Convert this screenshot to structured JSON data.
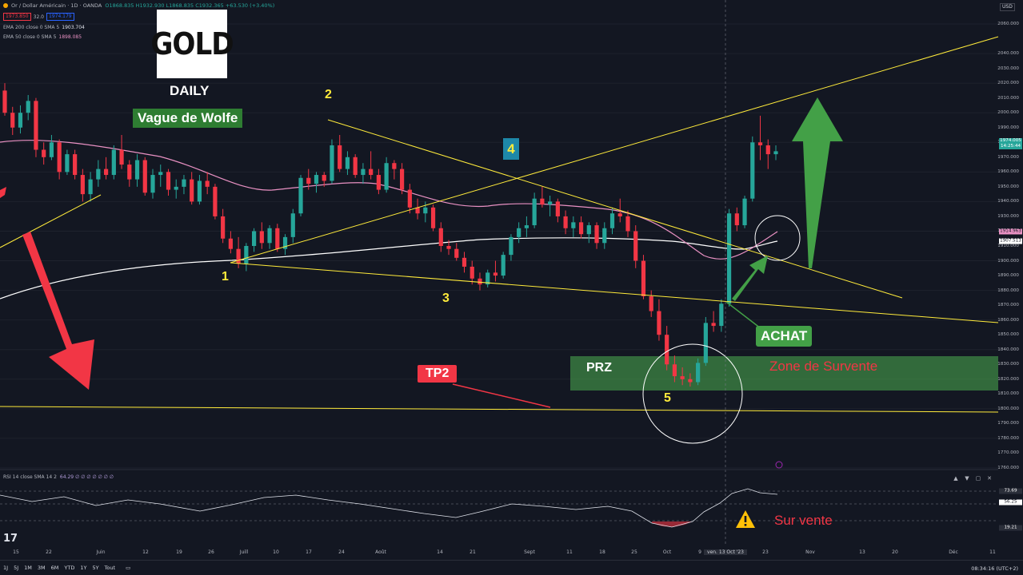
{
  "header": {
    "symbol": "Or / Dollar Américain · 1D · OANDA",
    "bid": "1973.850",
    "spread": "32.0",
    "ask": "1974.179",
    "ohlc": "O1868.835 H1932.930 L1868.835 C1932.365 +63.530 (+3.40%)"
  },
  "indicators": {
    "ema200_label": "EMA 200 close 0 SMA 5",
    "ema200_value": "1903.704",
    "ema50_label": "EMA 50 close 0 SMA 5",
    "ema50_value": "1898.085",
    "rsi_label": "RSI 14 close SMA 14 2",
    "rsi_value": "64.29 ∅ ∅ ∅ ∅ ∅ ∅ ∅"
  },
  "annotations": {
    "logo_text": "GOLD",
    "timeframe": "DAILY",
    "pattern": "Vague de Wolfe",
    "w1": "1",
    "w2": "2",
    "w3": "3",
    "w4": "4",
    "w5": "5",
    "prz": "PRZ",
    "zone": "Zone de Survente",
    "tp2": "TP2",
    "achat": "ACHAT",
    "survente": "Sur vente"
  },
  "price_axis": {
    "currency": "USD",
    "ticks": [
      "2060.000",
      "2040.000",
      "2030.000",
      "2020.000",
      "2010.000",
      "2000.000",
      "1990.000",
      "1980.000",
      "1970.000",
      "1960.000",
      "1950.000",
      "1940.000",
      "1930.000",
      "1920.000",
      "1910.000",
      "1900.000",
      "1890.000",
      "1880.000",
      "1870.000",
      "1860.000",
      "1850.000",
      "1840.000",
      "1830.000",
      "1820.000",
      "1810.000",
      "1800.000",
      "1790.000",
      "1780.000",
      "1770.000",
      "1760.000"
    ],
    "last_price": "1974.005",
    "countdown": "14:25:44",
    "ema50_tag": "1914.963",
    "ema200_tag": "1907.513",
    "rsi_ticks": [
      "73.69",
      "56.25",
      "19.21"
    ]
  },
  "time_axis": {
    "ticks": [
      "15",
      "22",
      "Juin",
      "12",
      "19",
      "26",
      "Juill",
      "10",
      "17",
      "24",
      "Août",
      "14",
      "21",
      "Sept",
      "11",
      "18",
      "25",
      "Oct",
      "9",
      "ven. 13 Oct '23",
      "23",
      "Nov",
      "13",
      "20",
      "Déc",
      "11"
    ],
    "current": "ven. 13 Oct '23"
  },
  "bottom_bar": {
    "ranges": [
      "1J",
      "5J",
      "1M",
      "3M",
      "6M",
      "YTD",
      "1Y",
      "5Y",
      "Tout"
    ],
    "clock": "08:34:16 (UTC+2)"
  },
  "colors": {
    "background": "#131722",
    "bull": "#26a69a",
    "bear": "#f23645",
    "trendline": "#ffeb3b",
    "ema200": "#ffffff",
    "ema50": "#e991c3",
    "prz_zone": "#4caf50"
  },
  "chart_data": {
    "type": "candlestick",
    "note": "approximate daily OHLC for XAUUSD, mid-May to 24 Oct 2023",
    "ylim": [
      1760,
      2060
    ],
    "candles": [
      [
        2015,
        2020,
        1998,
        2000
      ],
      [
        2000,
        2004,
        1985,
        1990
      ],
      [
        1990,
        2005,
        1986,
        2000
      ],
      [
        2000,
        2012,
        1995,
        2008
      ],
      [
        2008,
        2010,
        1970,
        1975
      ],
      [
        1975,
        1980,
        1965,
        1970
      ],
      [
        1970,
        1985,
        1968,
        1980
      ],
      [
        1980,
        1982,
        1955,
        1960
      ],
      [
        1960,
        1975,
        1958,
        1972
      ],
      [
        1972,
        1975,
        1955,
        1958
      ],
      [
        1958,
        1962,
        1940,
        1945
      ],
      [
        1945,
        1960,
        1940,
        1955
      ],
      [
        1955,
        1968,
        1950,
        1962
      ],
      [
        1962,
        1970,
        1955,
        1958
      ],
      [
        1958,
        1978,
        1955,
        1975
      ],
      [
        1975,
        1985,
        1962,
        1965
      ],
      [
        1965,
        1968,
        1950,
        1955
      ],
      [
        1955,
        1972,
        1950,
        1968
      ],
      [
        1968,
        1970,
        1944,
        1946
      ],
      [
        1946,
        1962,
        1942,
        1958
      ],
      [
        1958,
        1965,
        1950,
        1960
      ],
      [
        1960,
        1962,
        1944,
        1948
      ],
      [
        1948,
        1955,
        1942,
        1950
      ],
      [
        1950,
        1958,
        1945,
        1955
      ],
      [
        1955,
        1960,
        1938,
        1940
      ],
      [
        1940,
        1958,
        1938,
        1954
      ],
      [
        1954,
        1960,
        1945,
        1950
      ],
      [
        1950,
        1952,
        1928,
        1930
      ],
      [
        1930,
        1935,
        1912,
        1915
      ],
      [
        1915,
        1920,
        1905,
        1908
      ],
      [
        1908,
        1916,
        1895,
        1898
      ],
      [
        1898,
        1912,
        1893,
        1910
      ],
      [
        1910,
        1922,
        1906,
        1920
      ],
      [
        1920,
        1926,
        1908,
        1912
      ],
      [
        1912,
        1924,
        1908,
        1922
      ],
      [
        1922,
        1925,
        1906,
        1908
      ],
      [
        1908,
        1918,
        1904,
        1916
      ],
      [
        1916,
        1935,
        1912,
        1932
      ],
      [
        1932,
        1958,
        1930,
        1956
      ],
      [
        1956,
        1962,
        1948,
        1952
      ],
      [
        1952,
        1960,
        1946,
        1958
      ],
      [
        1958,
        1960,
        1950,
        1954
      ],
      [
        1954,
        1982,
        1952,
        1978
      ],
      [
        1978,
        1985,
        1960,
        1962
      ],
      [
        1962,
        1974,
        1958,
        1970
      ],
      [
        1970,
        1972,
        1956,
        1958
      ],
      [
        1958,
        1966,
        1952,
        1962
      ],
      [
        1962,
        1974,
        1955,
        1958
      ],
      [
        1958,
        1962,
        1945,
        1948
      ],
      [
        1948,
        1970,
        1946,
        1966
      ],
      [
        1966,
        1968,
        1955,
        1962
      ],
      [
        1962,
        1966,
        1945,
        1948
      ],
      [
        1948,
        1952,
        1932,
        1936
      ],
      [
        1936,
        1942,
        1928,
        1932
      ],
      [
        1932,
        1940,
        1926,
        1936
      ],
      [
        1936,
        1938,
        1920,
        1922
      ],
      [
        1922,
        1926,
        1906,
        1910
      ],
      [
        1910,
        1914,
        1904,
        1908
      ],
      [
        1908,
        1912,
        1900,
        1902
      ],
      [
        1902,
        1906,
        1892,
        1896
      ],
      [
        1896,
        1900,
        1884,
        1888
      ],
      [
        1888,
        1892,
        1880,
        1884
      ],
      [
        1884,
        1894,
        1882,
        1892
      ],
      [
        1892,
        1900,
        1886,
        1890
      ],
      [
        1890,
        1906,
        1888,
        1904
      ],
      [
        1904,
        1918,
        1900,
        1916
      ],
      [
        1916,
        1926,
        1912,
        1922
      ],
      [
        1922,
        1930,
        1916,
        1924
      ],
      [
        1924,
        1946,
        1922,
        1942
      ],
      [
        1942,
        1950,
        1936,
        1938
      ],
      [
        1938,
        1944,
        1930,
        1940
      ],
      [
        1940,
        1942,
        1926,
        1930
      ],
      [
        1930,
        1934,
        1918,
        1922
      ],
      [
        1922,
        1930,
        1916,
        1926
      ],
      [
        1926,
        1930,
        1915,
        1918
      ],
      [
        1918,
        1926,
        1912,
        1924
      ],
      [
        1924,
        1926,
        1908,
        1912
      ],
      [
        1912,
        1926,
        1908,
        1922
      ],
      [
        1922,
        1936,
        1918,
        1932
      ],
      [
        1932,
        1942,
        1926,
        1930
      ],
      [
        1930,
        1934,
        1916,
        1920
      ],
      [
        1920,
        1924,
        1895,
        1900
      ],
      [
        1900,
        1904,
        1874,
        1876
      ],
      [
        1876,
        1880,
        1862,
        1866
      ],
      [
        1866,
        1874,
        1846,
        1850
      ],
      [
        1850,
        1856,
        1826,
        1830
      ],
      [
        1830,
        1836,
        1818,
        1822
      ],
      [
        1822,
        1828,
        1816,
        1820
      ],
      [
        1820,
        1824,
        1815,
        1818
      ],
      [
        1818,
        1834,
        1816,
        1831
      ],
      [
        1831,
        1862,
        1829,
        1858
      ],
      [
        1858,
        1866,
        1852,
        1856
      ],
      [
        1856,
        1874,
        1852,
        1871
      ],
      [
        1871,
        1935,
        1869,
        1932
      ],
      [
        1932,
        1936,
        1920,
        1924
      ],
      [
        1924,
        1944,
        1922,
        1942
      ],
      [
        1942,
        1984,
        1940,
        1980
      ],
      [
        1980,
        1998,
        1968,
        1978
      ],
      [
        1978,
        1982,
        1962,
        1972
      ],
      [
        1972,
        1978,
        1968,
        1974
      ]
    ],
    "rsi_levels": {
      "overbought": 73.69,
      "mid": 56.25,
      "oversold": 19.21,
      "current": 64.29
    }
  }
}
